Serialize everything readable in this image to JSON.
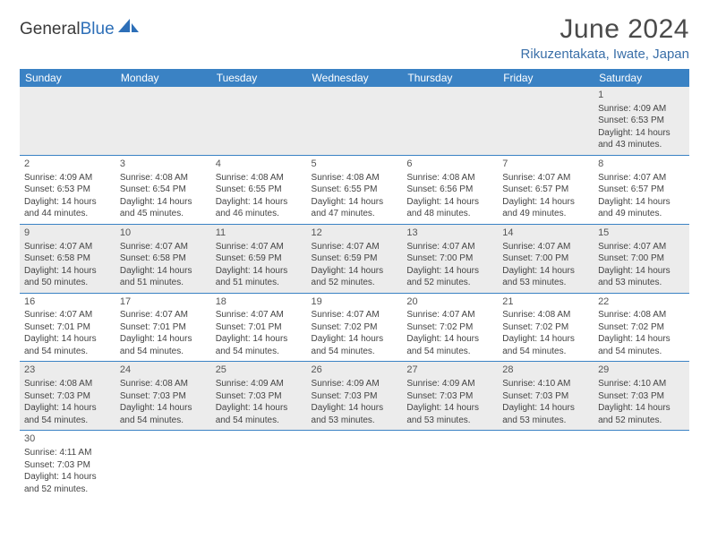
{
  "brand": {
    "part1": "General",
    "part2": "Blue"
  },
  "title": "June 2024",
  "location": "Rikuzentakata, Iwate, Japan",
  "colors": {
    "header_bg": "#3a82c4",
    "header_text": "#ffffff",
    "odd_row_bg": "#ececec",
    "even_row_bg": "#ffffff",
    "rule": "#3a82c4",
    "brand_blue": "#2d6fb8",
    "title_color": "#4a4a4a",
    "location_color": "#3a6fa8"
  },
  "weekdays": [
    "Sunday",
    "Monday",
    "Tuesday",
    "Wednesday",
    "Thursday",
    "Friday",
    "Saturday"
  ],
  "weeks": [
    [
      null,
      null,
      null,
      null,
      null,
      null,
      {
        "d": "1",
        "sr": "4:09 AM",
        "ss": "6:53 PM",
        "dl": "14 hours and 43 minutes."
      }
    ],
    [
      {
        "d": "2",
        "sr": "4:09 AM",
        "ss": "6:53 PM",
        "dl": "14 hours and 44 minutes."
      },
      {
        "d": "3",
        "sr": "4:08 AM",
        "ss": "6:54 PM",
        "dl": "14 hours and 45 minutes."
      },
      {
        "d": "4",
        "sr": "4:08 AM",
        "ss": "6:55 PM",
        "dl": "14 hours and 46 minutes."
      },
      {
        "d": "5",
        "sr": "4:08 AM",
        "ss": "6:55 PM",
        "dl": "14 hours and 47 minutes."
      },
      {
        "d": "6",
        "sr": "4:08 AM",
        "ss": "6:56 PM",
        "dl": "14 hours and 48 minutes."
      },
      {
        "d": "7",
        "sr": "4:07 AM",
        "ss": "6:57 PM",
        "dl": "14 hours and 49 minutes."
      },
      {
        "d": "8",
        "sr": "4:07 AM",
        "ss": "6:57 PM",
        "dl": "14 hours and 49 minutes."
      }
    ],
    [
      {
        "d": "9",
        "sr": "4:07 AM",
        "ss": "6:58 PM",
        "dl": "14 hours and 50 minutes."
      },
      {
        "d": "10",
        "sr": "4:07 AM",
        "ss": "6:58 PM",
        "dl": "14 hours and 51 minutes."
      },
      {
        "d": "11",
        "sr": "4:07 AM",
        "ss": "6:59 PM",
        "dl": "14 hours and 51 minutes."
      },
      {
        "d": "12",
        "sr": "4:07 AM",
        "ss": "6:59 PM",
        "dl": "14 hours and 52 minutes."
      },
      {
        "d": "13",
        "sr": "4:07 AM",
        "ss": "7:00 PM",
        "dl": "14 hours and 52 minutes."
      },
      {
        "d": "14",
        "sr": "4:07 AM",
        "ss": "7:00 PM",
        "dl": "14 hours and 53 minutes."
      },
      {
        "d": "15",
        "sr": "4:07 AM",
        "ss": "7:00 PM",
        "dl": "14 hours and 53 minutes."
      }
    ],
    [
      {
        "d": "16",
        "sr": "4:07 AM",
        "ss": "7:01 PM",
        "dl": "14 hours and 54 minutes."
      },
      {
        "d": "17",
        "sr": "4:07 AM",
        "ss": "7:01 PM",
        "dl": "14 hours and 54 minutes."
      },
      {
        "d": "18",
        "sr": "4:07 AM",
        "ss": "7:01 PM",
        "dl": "14 hours and 54 minutes."
      },
      {
        "d": "19",
        "sr": "4:07 AM",
        "ss": "7:02 PM",
        "dl": "14 hours and 54 minutes."
      },
      {
        "d": "20",
        "sr": "4:07 AM",
        "ss": "7:02 PM",
        "dl": "14 hours and 54 minutes."
      },
      {
        "d": "21",
        "sr": "4:08 AM",
        "ss": "7:02 PM",
        "dl": "14 hours and 54 minutes."
      },
      {
        "d": "22",
        "sr": "4:08 AM",
        "ss": "7:02 PM",
        "dl": "14 hours and 54 minutes."
      }
    ],
    [
      {
        "d": "23",
        "sr": "4:08 AM",
        "ss": "7:03 PM",
        "dl": "14 hours and 54 minutes."
      },
      {
        "d": "24",
        "sr": "4:08 AM",
        "ss": "7:03 PM",
        "dl": "14 hours and 54 minutes."
      },
      {
        "d": "25",
        "sr": "4:09 AM",
        "ss": "7:03 PM",
        "dl": "14 hours and 54 minutes."
      },
      {
        "d": "26",
        "sr": "4:09 AM",
        "ss": "7:03 PM",
        "dl": "14 hours and 53 minutes."
      },
      {
        "d": "27",
        "sr": "4:09 AM",
        "ss": "7:03 PM",
        "dl": "14 hours and 53 minutes."
      },
      {
        "d": "28",
        "sr": "4:10 AM",
        "ss": "7:03 PM",
        "dl": "14 hours and 53 minutes."
      },
      {
        "d": "29",
        "sr": "4:10 AM",
        "ss": "7:03 PM",
        "dl": "14 hours and 52 minutes."
      }
    ],
    [
      {
        "d": "30",
        "sr": "4:11 AM",
        "ss": "7:03 PM",
        "dl": "14 hours and 52 minutes."
      },
      null,
      null,
      null,
      null,
      null,
      null
    ]
  ],
  "labels": {
    "sunrise": "Sunrise:",
    "sunset": "Sunset:",
    "daylight": "Daylight:"
  }
}
